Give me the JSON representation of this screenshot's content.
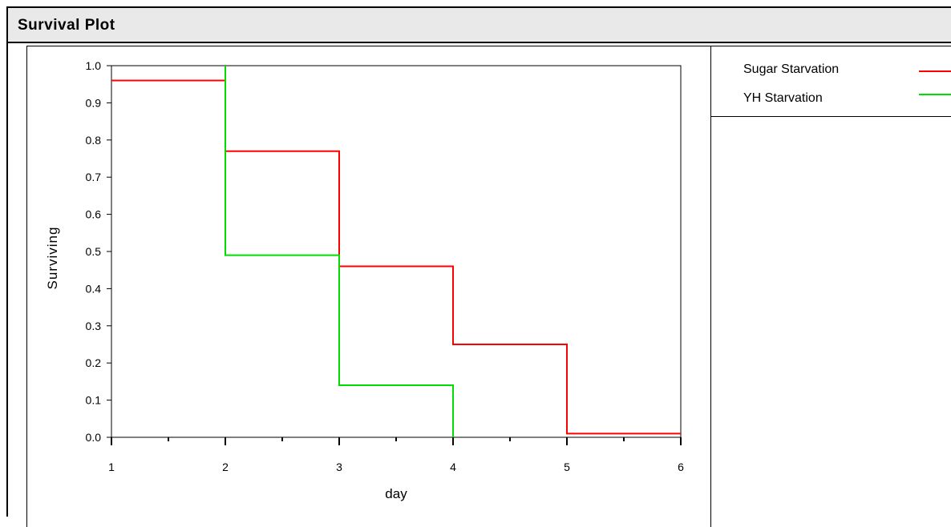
{
  "window": {
    "title": "Survival Plot"
  },
  "colors": {
    "title_bar_bg": "#e9e9e9",
    "series_sugar": "#ff0000",
    "series_yh": "#00dd00"
  },
  "chart_data": {
    "type": "line",
    "step": true,
    "xlabel": "day",
    "ylabel": "Surviving",
    "xlim": [
      1,
      6
    ],
    "ylim": [
      0,
      1
    ],
    "x_ticks": [
      "1",
      "2",
      "3",
      "4",
      "5",
      "6"
    ],
    "y_ticks": [
      "0.0",
      "0.1",
      "0.2",
      "0.3",
      "0.4",
      "0.5",
      "0.6",
      "0.7",
      "0.8",
      "0.9",
      "1.0"
    ],
    "grid": false,
    "legend_position": "right",
    "series": [
      {
        "name": "Sugar Starvation",
        "color": "#ff0000",
        "points": [
          [
            1,
            0.96
          ],
          [
            2,
            0.77
          ],
          [
            3,
            0.46
          ],
          [
            4,
            0.25
          ],
          [
            5,
            0.01
          ],
          [
            6,
            0.01
          ]
        ]
      },
      {
        "name": "YH Starvation",
        "color": "#00dd00",
        "points": [
          [
            2,
            1.0
          ],
          [
            2,
            0.49
          ],
          [
            3,
            0.14
          ],
          [
            4,
            0.0
          ]
        ]
      }
    ]
  }
}
